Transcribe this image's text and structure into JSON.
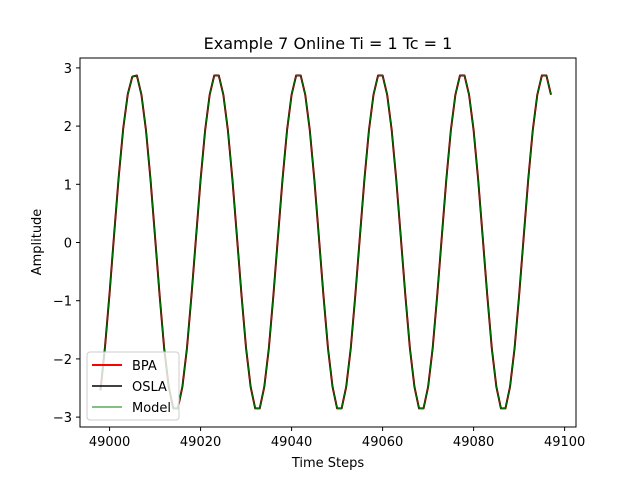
{
  "chart_data": {
    "type": "line",
    "title": "Example 7 Online Ti = 1 Tc = 1",
    "xlabel": "Time Steps",
    "ylabel": "Amplitude",
    "xlim": [
      48993.5,
      49102.5
    ],
    "ylim": [
      -3.17,
      3.17
    ],
    "xticks": [
      49000,
      49020,
      49040,
      49060,
      49080,
      49100
    ],
    "xtick_labels": [
      "49000",
      "49020",
      "49040",
      "49060",
      "49080",
      "49100"
    ],
    "yticks": [
      -3,
      -2,
      -1,
      0,
      1,
      2,
      3
    ],
    "ytick_labels": [
      "−3",
      "−2",
      "−1",
      "0",
      "1",
      "2",
      "3"
    ],
    "grid": false,
    "legend_position": "lower-left",
    "colors": {
      "BPA": "#ff0000",
      "OSLA": "#000000",
      "Model": "#008000"
    },
    "x": [
      48998,
      48999,
      49000,
      49001,
      49002,
      49003,
      49004,
      49005,
      49006,
      49007,
      49008,
      49009,
      49010,
      49011,
      49012,
      49013,
      49014,
      49015,
      49016,
      49017,
      49018,
      49019,
      49020,
      49021,
      49022,
      49023,
      49024,
      49025,
      49026,
      49027,
      49028,
      49029,
      49030,
      49031,
      49032,
      49033,
      49034,
      49035,
      49036,
      49037,
      49038,
      49039,
      49040,
      49041,
      49042,
      49043,
      49044,
      49045,
      49046,
      49047,
      49048,
      49049,
      49050,
      49051,
      49052,
      49053,
      49054,
      49055,
      49056,
      49057,
      49058,
      49059,
      49060,
      49061,
      49062,
      49063,
      49064,
      49065,
      49066,
      49067,
      49068,
      49069,
      49070,
      49071,
      49072,
      49073,
      49074,
      49075,
      49076,
      49077,
      49078,
      49079,
      49080,
      49081,
      49082,
      49083,
      49084,
      49085,
      49086,
      49087,
      49088,
      49089,
      49090,
      49091,
      49092,
      49093,
      49094,
      49095,
      49096,
      49097
    ],
    "series": [
      {
        "name": "BPA",
        "values": [
          -2.54,
          -1.79,
          -0.87,
          0.14,
          1.12,
          1.96,
          2.55,
          2.85,
          2.87,
          2.54,
          1.93,
          1.08,
          0.09,
          -0.91,
          -1.82,
          -2.48,
          -2.85,
          -2.85,
          -2.48,
          -1.82,
          -0.91,
          0.09,
          1.08,
          1.93,
          2.54,
          2.87,
          2.87,
          2.54,
          1.93,
          1.08,
          0.09,
          -0.91,
          -1.82,
          -2.48,
          -2.85,
          -2.85,
          -2.48,
          -1.82,
          -0.91,
          0.09,
          1.08,
          1.93,
          2.54,
          2.87,
          2.87,
          2.54,
          1.93,
          1.08,
          0.09,
          -0.91,
          -1.82,
          -2.48,
          -2.85,
          -2.85,
          -2.48,
          -1.82,
          -0.91,
          0.09,
          1.08,
          1.93,
          2.54,
          2.87,
          2.87,
          2.54,
          1.93,
          1.08,
          0.09,
          -0.91,
          -1.82,
          -2.48,
          -2.85,
          -2.85,
          -2.48,
          -1.82,
          -0.91,
          0.09,
          1.08,
          1.93,
          2.54,
          2.87,
          2.87,
          2.54,
          1.93,
          1.08,
          0.09,
          -0.91,
          -1.82,
          -2.48,
          -2.85,
          -2.85,
          -2.48,
          -1.82,
          -0.91,
          0.09,
          1.08,
          1.93,
          2.54,
          2.87,
          2.87,
          2.54
        ]
      },
      {
        "name": "OSLA",
        "values": [
          -2.54,
          -1.79,
          -0.87,
          0.14,
          1.12,
          1.96,
          2.55,
          2.85,
          2.87,
          2.54,
          1.93,
          1.08,
          0.09,
          -0.91,
          -1.82,
          -2.48,
          -2.85,
          -2.85,
          -2.48,
          -1.82,
          -0.91,
          0.09,
          1.08,
          1.93,
          2.54,
          2.87,
          2.87,
          2.54,
          1.93,
          1.08,
          0.09,
          -0.91,
          -1.82,
          -2.48,
          -2.85,
          -2.85,
          -2.48,
          -1.82,
          -0.91,
          0.09,
          1.08,
          1.93,
          2.54,
          2.87,
          2.87,
          2.54,
          1.93,
          1.08,
          0.09,
          -0.91,
          -1.82,
          -2.48,
          -2.85,
          -2.85,
          -2.48,
          -1.82,
          -0.91,
          0.09,
          1.08,
          1.93,
          2.54,
          2.87,
          2.87,
          2.54,
          1.93,
          1.08,
          0.09,
          -0.91,
          -1.82,
          -2.48,
          -2.85,
          -2.85,
          -2.48,
          -1.82,
          -0.91,
          0.09,
          1.08,
          1.93,
          2.54,
          2.87,
          2.87,
          2.54,
          1.93,
          1.08,
          0.09,
          -0.91,
          -1.82,
          -2.48,
          -2.85,
          -2.85,
          -2.48,
          -1.82,
          -0.91,
          0.09,
          1.08,
          1.93,
          2.54,
          2.87,
          2.87,
          2.54
        ]
      },
      {
        "name": "Model",
        "values": [
          -2.54,
          -1.79,
          -0.87,
          0.14,
          1.12,
          1.96,
          2.55,
          2.85,
          2.87,
          2.54,
          1.93,
          1.08,
          0.09,
          -0.91,
          -1.82,
          -2.48,
          -2.85,
          -2.85,
          -2.48,
          -1.82,
          -0.91,
          0.09,
          1.08,
          1.93,
          2.54,
          2.87,
          2.87,
          2.54,
          1.93,
          1.08,
          0.09,
          -0.91,
          -1.82,
          -2.48,
          -2.85,
          -2.85,
          -2.48,
          -1.82,
          -0.91,
          0.09,
          1.08,
          1.93,
          2.54,
          2.87,
          2.87,
          2.54,
          1.93,
          1.08,
          0.09,
          -0.91,
          -1.82,
          -2.48,
          -2.85,
          -2.85,
          -2.48,
          -1.82,
          -0.91,
          0.09,
          1.08,
          1.93,
          2.54,
          2.87,
          2.87,
          2.54,
          1.93,
          1.08,
          0.09,
          -0.91,
          -1.82,
          -2.48,
          -2.85,
          -2.85,
          -2.48,
          -1.82,
          -0.91,
          0.09,
          1.08,
          1.93,
          2.54,
          2.87,
          2.87,
          2.54,
          1.93,
          1.08,
          0.09,
          -0.91,
          -1.82,
          -2.48,
          -2.85,
          -2.85,
          -2.48,
          -1.82,
          -0.91,
          0.09,
          1.08,
          1.93,
          2.54,
          2.87,
          2.87,
          2.54
        ]
      }
    ]
  }
}
